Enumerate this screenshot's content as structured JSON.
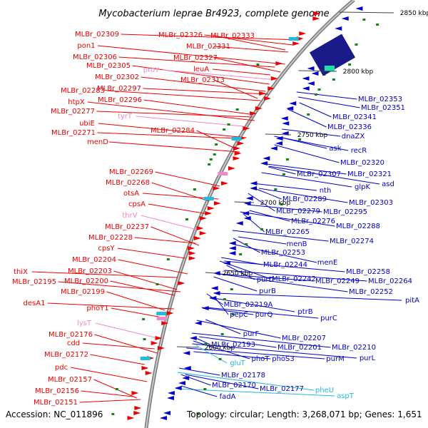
{
  "title": "Mycobacterium leprae Br4923, complete genome",
  "footer": {
    "accession": "Accession: NC_011896",
    "topology": "Topology: circular; Length: 3,268,071 bp; Genes: 1,651"
  },
  "ticks": [
    "2850 kbp",
    "2800 kbp",
    "2750 kbp",
    "2700 kbp",
    "2650 kbp",
    "2600 kbp"
  ],
  "colors": {
    "forward_gene": "#ee0000",
    "reverse_gene": "#0000cc",
    "trna": "#ee88cc",
    "rrna": "#22bbdd",
    "dot": "#118811",
    "backbone": "#888888"
  },
  "labels_left": [
    {
      "text": "MLBr_02309",
      "color": "red"
    },
    {
      "text": "MLBr_02326",
      "color": "red"
    },
    {
      "text": "MLBr_02333",
      "color": "red"
    },
    {
      "text": "pon1",
      "color": "red"
    },
    {
      "text": "MLBr_02331",
      "color": "red"
    },
    {
      "text": "MLBr_02306",
      "color": "red"
    },
    {
      "text": "MLBr_02327",
      "color": "red"
    },
    {
      "text": "MLBr_02305",
      "color": "red"
    },
    {
      "text": "leuA",
      "color": "red"
    },
    {
      "text": "proY",
      "color": "pink"
    },
    {
      "text": "MLBr_02302",
      "color": "red"
    },
    {
      "text": "MLBr_02313",
      "color": "red"
    },
    {
      "text": "MLBr_02297",
      "color": "red"
    },
    {
      "text": "MLBr_02283",
      "color": "red"
    },
    {
      "text": "MLBr_02296",
      "color": "red"
    },
    {
      "text": "htpX",
      "color": "red"
    },
    {
      "text": "MLBr_02277",
      "color": "red"
    },
    {
      "text": "tyrT",
      "color": "pink"
    },
    {
      "text": "ubiE",
      "color": "red"
    },
    {
      "text": "MLBr_02284",
      "color": "red"
    },
    {
      "text": "MLBr_02271",
      "color": "red"
    },
    {
      "text": "menD",
      "color": "red"
    },
    {
      "text": "MLBr_02269",
      "color": "red"
    },
    {
      "text": "MLBr_02268",
      "color": "red"
    },
    {
      "text": "otsA",
      "color": "red"
    },
    {
      "text": "cpsA",
      "color": "red"
    },
    {
      "text": "thrV",
      "color": "pink"
    },
    {
      "text": "MLBr_02237",
      "color": "red"
    },
    {
      "text": "MLBr_02228",
      "color": "red"
    },
    {
      "text": "cpsY",
      "color": "red"
    },
    {
      "text": "MLBr_02204",
      "color": "red"
    },
    {
      "text": "MLBr_02203",
      "color": "red"
    },
    {
      "text": "thiX",
      "color": "red"
    },
    {
      "text": "MLBr_02195",
      "color": "red"
    },
    {
      "text": "MLBr_02200",
      "color": "red"
    },
    {
      "text": "MLBr_02199",
      "color": "red"
    },
    {
      "text": "desA1",
      "color": "red"
    },
    {
      "text": "phoY1",
      "color": "red"
    },
    {
      "text": "lysT",
      "color": "pink"
    },
    {
      "text": "MLBr_02176",
      "color": "red"
    },
    {
      "text": "cdd",
      "color": "red"
    },
    {
      "text": "MLBr_02172",
      "color": "red"
    },
    {
      "text": "pdc",
      "color": "red"
    },
    {
      "text": "MLBr_02157",
      "color": "red"
    },
    {
      "text": "MLBr_02156",
      "color": "red"
    },
    {
      "text": "MLBr_02151",
      "color": "red"
    }
  ],
  "labels_right": [
    {
      "text": "MLBr_02353",
      "color": "blue"
    },
    {
      "text": "MLBr_02351",
      "color": "blue"
    },
    {
      "text": "MLBr_02341",
      "color": "blue"
    },
    {
      "text": "MLBr_02336",
      "color": "blue"
    },
    {
      "text": "dnaZX",
      "color": "blue"
    },
    {
      "text": "ask",
      "color": "blue"
    },
    {
      "text": "recR",
      "color": "blue"
    },
    {
      "text": "MLBr_02320",
      "color": "blue"
    },
    {
      "text": "MLBr_02307",
      "color": "blue"
    },
    {
      "text": "MLBr_02321",
      "color": "blue"
    },
    {
      "text": "glpK",
      "color": "blue"
    },
    {
      "text": "asd",
      "color": "blue"
    },
    {
      "text": "nth",
      "color": "blue"
    },
    {
      "text": "MLBr_02289",
      "color": "blue"
    },
    {
      "text": "MLBr_02303",
      "color": "blue"
    },
    {
      "text": "MLBr_02279",
      "color": "blue"
    },
    {
      "text": "MLBr_02295",
      "color": "blue"
    },
    {
      "text": "MLBr_02276",
      "color": "blue"
    },
    {
      "text": "MLBr_02288",
      "color": "blue"
    },
    {
      "text": "MLBr_02265",
      "color": "blue"
    },
    {
      "text": "menB",
      "color": "blue"
    },
    {
      "text": "MLBr_02274",
      "color": "blue"
    },
    {
      "text": "MLBr_02253",
      "color": "blue"
    },
    {
      "text": "menE",
      "color": "blue"
    },
    {
      "text": "MLBr_02244",
      "color": "blue"
    },
    {
      "text": "MLBr_02258",
      "color": "blue"
    },
    {
      "text": "purD",
      "color": "blue"
    },
    {
      "text": "MLBr_02242",
      "color": "blue"
    },
    {
      "text": "MLBr_02249",
      "color": "blue"
    },
    {
      "text": "MLBr_02264",
      "color": "blue"
    },
    {
      "text": "purB",
      "color": "blue"
    },
    {
      "text": "MLBr_02252",
      "color": "blue"
    },
    {
      "text": "pitA",
      "color": "blue"
    },
    {
      "text": "MLBr_02219A",
      "color": "blue"
    },
    {
      "text": "ptrB",
      "color": "blue"
    },
    {
      "text": "pepC",
      "color": "blue"
    },
    {
      "text": "purQ",
      "color": "blue"
    },
    {
      "text": "purC",
      "color": "blue"
    },
    {
      "text": "purF",
      "color": "blue"
    },
    {
      "text": "MLBr_02207",
      "color": "blue"
    },
    {
      "text": "MLBr_02193",
      "color": "blue"
    },
    {
      "text": "MLBr_02201",
      "color": "blue"
    },
    {
      "text": "MLBr_02210",
      "color": "blue"
    },
    {
      "text": "phoT",
      "color": "blue"
    },
    {
      "text": "phoS3",
      "color": "blue"
    },
    {
      "text": "purM",
      "color": "blue"
    },
    {
      "text": "purL",
      "color": "blue"
    },
    {
      "text": "gluT",
      "color": "cyan"
    },
    {
      "text": "MLBr_02178",
      "color": "blue"
    },
    {
      "text": "MLBr_02170",
      "color": "blue"
    },
    {
      "text": "MLBr_02177",
      "color": "blue"
    },
    {
      "text": "pheU",
      "color": "cyan"
    },
    {
      "text": "aspT",
      "color": "cyan"
    },
    {
      "text": "fadA",
      "color": "blue"
    }
  ]
}
